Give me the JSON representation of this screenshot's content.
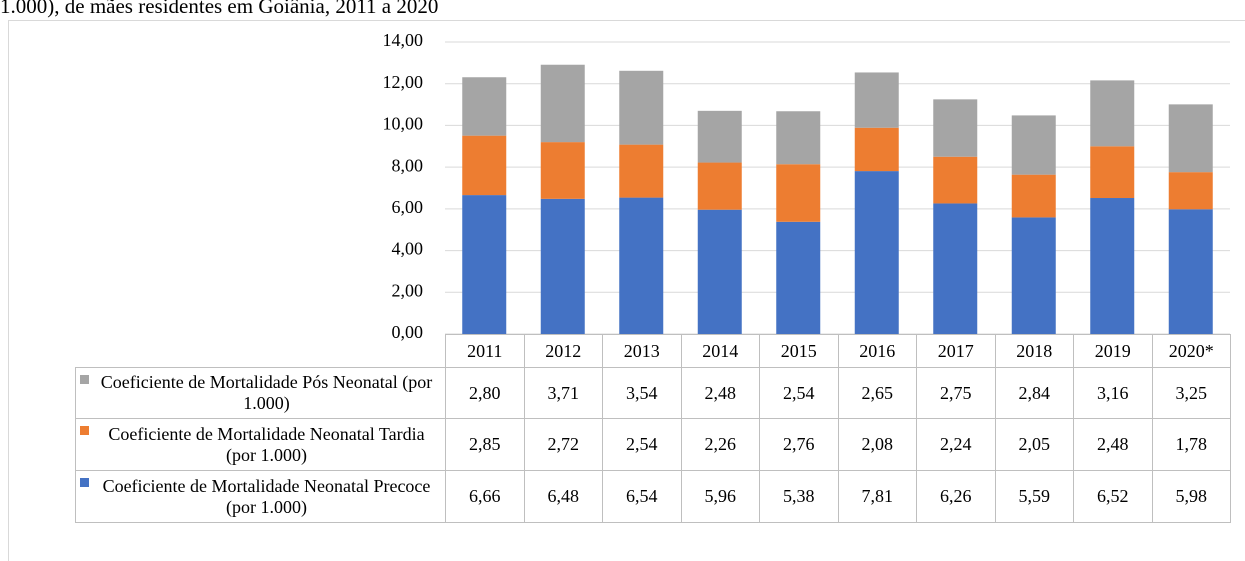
{
  "chart_data": {
    "type": "stacked_bar",
    "title": "1.000), de mães residentes em Goiânia, 2011 a 2020",
    "categories": [
      "2011",
      "2012",
      "2013",
      "2014",
      "2015",
      "2016",
      "2017",
      "2018",
      "2019",
      "2020*"
    ],
    "series": [
      {
        "name": "Coeficiente de Mortalidade Pós Neonatal (por 1.000)",
        "color": "#a5a5a5",
        "values": [
          2.8,
          3.71,
          3.54,
          2.48,
          2.54,
          2.65,
          2.75,
          2.84,
          3.16,
          3.25
        ],
        "value_labels": [
          "2,80",
          "3,71",
          "3,54",
          "2,48",
          "2,54",
          "2,65",
          "2,75",
          "2,84",
          "3,16",
          "3,25"
        ]
      },
      {
        "name": "Coeficiente de Mortalidade Neonatal Tardia (por 1.000)",
        "color": "#ed7d31",
        "values": [
          2.85,
          2.72,
          2.54,
          2.26,
          2.76,
          2.08,
          2.24,
          2.05,
          2.48,
          1.78
        ],
        "value_labels": [
          "2,85",
          "2,72",
          "2,54",
          "2,26",
          "2,76",
          "2,08",
          "2,24",
          "2,05",
          "2,48",
          "1,78"
        ]
      },
      {
        "name": "Coeficiente de Mortalidade Neonatal Precoce (por 1.000)",
        "color": "#4472c4",
        "values": [
          6.66,
          6.48,
          6.54,
          5.96,
          5.38,
          7.81,
          6.26,
          5.59,
          6.52,
          5.98
        ],
        "value_labels": [
          "6,66",
          "6,48",
          "6,54",
          "5,96",
          "5,38",
          "7,81",
          "6,26",
          "5,59",
          "6,52",
          "5,98"
        ]
      }
    ],
    "ylim": [
      0,
      14
    ],
    "yticks": [
      {
        "value": 0,
        "label": "0,00"
      },
      {
        "value": 2,
        "label": "2,00"
      },
      {
        "value": 4,
        "label": "4,00"
      },
      {
        "value": 6,
        "label": "6,00"
      },
      {
        "value": 8,
        "label": "8,00"
      },
      {
        "value": 10,
        "label": "10,00"
      },
      {
        "value": 12,
        "label": "12,00"
      },
      {
        "value": 14,
        "label": "14,00"
      }
    ],
    "grid": true
  }
}
